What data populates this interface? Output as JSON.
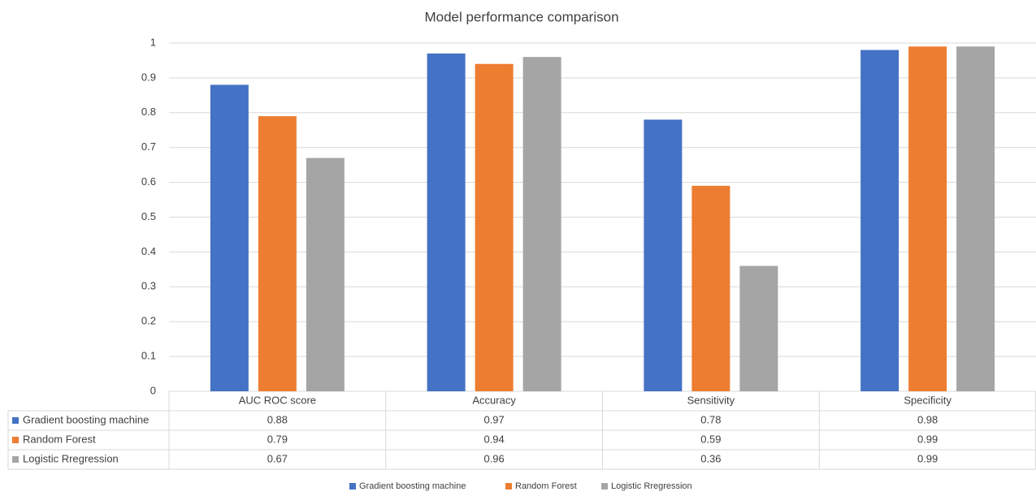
{
  "chart_data": {
    "type": "bar",
    "title": "Model performance comparison",
    "categories": [
      "AUC ROC score",
      "Accuracy",
      "Sensitivity",
      "Specificity"
    ],
    "series": [
      {
        "name": "Gradient boosting machine",
        "color": "#4472c4",
        "values": [
          0.88,
          0.97,
          0.78,
          0.98
        ]
      },
      {
        "name": "Random Forest",
        "color": "#ed7d31",
        "values": [
          0.79,
          0.94,
          0.59,
          0.99
        ]
      },
      {
        "name": "Logistic Rregression",
        "color": "#a5a5a5",
        "values": [
          0.67,
          0.96,
          0.36,
          0.99
        ]
      }
    ],
    "ylim": [
      0,
      1
    ],
    "yticks": [
      0,
      0.1,
      0.2,
      0.3,
      0.4,
      0.5,
      0.6,
      0.7,
      0.8,
      0.9,
      1
    ],
    "grid": true,
    "data_table": true,
    "legend": "bottom"
  }
}
